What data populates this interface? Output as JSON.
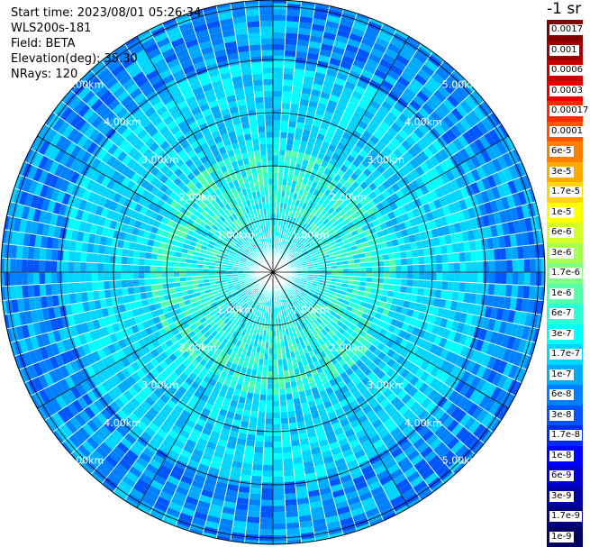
{
  "header": {
    "start_time": "Start time: 2023/08/01 05:26:34",
    "instrument": "WLS200s-181",
    "field": "Field: BETA",
    "elevation": "Elevation(deg): 35.30",
    "nrays": "NRays: 120"
  },
  "colorbar": {
    "unit_label": "-1 sr",
    "entries": [
      {
        "label": "0.0017",
        "color": "#800000"
      },
      {
        "label": "0.001",
        "color": "#a00000"
      },
      {
        "label": "0.0006",
        "color": "#c80000"
      },
      {
        "label": "0.0003",
        "color": "#e80000"
      },
      {
        "label": "0.00017",
        "color": "#ff2a00"
      },
      {
        "label": "0.0001",
        "color": "#ff5500"
      },
      {
        "label": "6e-5",
        "color": "#ff8000"
      },
      {
        "label": "3e-5",
        "color": "#ffaa00"
      },
      {
        "label": "1.7e-5",
        "color": "#ffd500"
      },
      {
        "label": "1e-5",
        "color": "#ffff00"
      },
      {
        "label": "6e-6",
        "color": "#d5ff2a"
      },
      {
        "label": "3e-6",
        "color": "#aaff55"
      },
      {
        "label": "1.7e-6",
        "color": "#80ff80"
      },
      {
        "label": "1e-6",
        "color": "#55ffaa"
      },
      {
        "label": "6e-7",
        "color": "#2affd5"
      },
      {
        "label": "3e-7",
        "color": "#00ffff"
      },
      {
        "label": "1.7e-7",
        "color": "#00d5ff"
      },
      {
        "label": "1e-7",
        "color": "#00aaff"
      },
      {
        "label": "6e-8",
        "color": "#0080ff"
      },
      {
        "label": "3e-8",
        "color": "#0055ff"
      },
      {
        "label": "1.7e-8",
        "color": "#002aff"
      },
      {
        "label": "1e-8",
        "color": "#0000ff"
      },
      {
        "label": "6e-9",
        "color": "#0000d5"
      },
      {
        "label": "3e-9",
        "color": "#0000aa"
      },
      {
        "label": "1.7e-9",
        "color": "#000080"
      },
      {
        "label": "1e-9",
        "color": "#000060"
      }
    ]
  },
  "chart_data": {
    "type": "heatmap",
    "projection": "polar PPI",
    "field": "BETA",
    "n_rays": 120,
    "range_rings_km": [
      1,
      2,
      3,
      4,
      5
    ],
    "ring_labels": [
      "1.00km",
      "2.00km",
      "3.00km",
      "4.00km",
      "5.00km"
    ],
    "spokes_deg": [
      0,
      30,
      60,
      90,
      120,
      150,
      180,
      210,
      240,
      270,
      300,
      330
    ],
    "value_profile": [
      {
        "range_km_from": 0,
        "range_km_to": 1.0,
        "dominant_value": "3e-7"
      },
      {
        "range_km_from": 1.0,
        "range_km_to": 2.3,
        "dominant_value": "3e-7 to 1e-6"
      },
      {
        "range_km_from": 2.3,
        "range_km_to": 4.0,
        "dominant_value": "1.7e-7"
      },
      {
        "range_km_from": 4.0,
        "range_km_to": 6.0,
        "dominant_value": "6e-8"
      }
    ],
    "legend_position": "right",
    "color_scale": "log"
  }
}
